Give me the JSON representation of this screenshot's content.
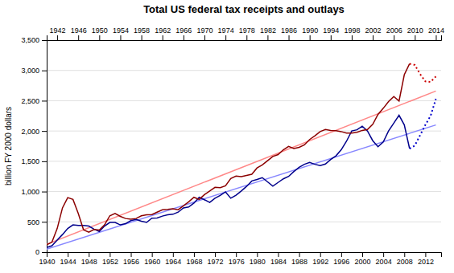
{
  "chart_data": {
    "type": "line",
    "title": "Total US federal tax receipts and outlays",
    "ylabel": "billion FY 2000 dollars",
    "xlim": [
      1940,
      2015
    ],
    "x2lim": [
      1940,
      2015
    ],
    "ylim": [
      0,
      3500
    ],
    "yticks": [
      0,
      500,
      {
        "value": 1000,
        "label": "1,000"
      },
      {
        "value": 1500,
        "label": "1,500"
      },
      {
        "value": 2000,
        "label": "2,000"
      },
      {
        "value": 2500,
        "label": "2,500"
      },
      {
        "value": 3000,
        "label": "3,000"
      },
      {
        "value": 3500,
        "label": "3,500"
      }
    ],
    "xticks": [
      1940,
      1944,
      1948,
      1952,
      1956,
      1960,
      1964,
      1968,
      1972,
      1976,
      1980,
      1984,
      1988,
      1992,
      1996,
      2000,
      2004,
      2008,
      2012
    ],
    "x2ticks": [
      1942,
      1946,
      1950,
      1954,
      1958,
      1962,
      1966,
      1970,
      1974,
      1978,
      1982,
      1986,
      1990,
      1994,
      1998,
      2002,
      2006,
      2010,
      2014
    ],
    "grid": true,
    "series": [
      {
        "color": "#8888FF",
        "line_style": "solid",
        "x": [
          1940,
          2014
        ],
        "values": [
          50,
          2100
        ]
      },
      {
        "color": "#FF8888",
        "line_style": "solid",
        "x": [
          1940,
          2014
        ],
        "values": [
          130,
          2660
        ]
      },
      {
        "color": "#00008B",
        "line_style": "solid",
        "x": [
          1940,
          1941,
          1942,
          1943,
          1944,
          1945,
          1946,
          1947,
          1948,
          1949,
          1950,
          1951,
          1952,
          1953,
          1954,
          1955,
          1956,
          1957,
          1958,
          1959,
          1960,
          1961,
          1962,
          1963,
          1964,
          1965,
          1966,
          1967,
          1968,
          1969,
          1970,
          1971,
          1972,
          1973,
          1974,
          1975,
          1976,
          1977,
          1978,
          1979,
          1980,
          1981,
          1982,
          1983,
          1984,
          1985,
          1986,
          1987,
          1988,
          1989,
          1990,
          1991,
          1992,
          1993,
          1994,
          1995,
          1996,
          1997,
          1998,
          1999,
          2000,
          2001,
          2002,
          2003,
          2004,
          2005,
          2006,
          2007,
          2008,
          2009
        ],
        "values": [
          75,
          105,
          200,
          290,
          390,
          450,
          440,
          440,
          430,
          380,
          340,
          430,
          490,
          490,
          450,
          470,
          520,
          540,
          510,
          490,
          560,
          565,
          595,
          615,
          625,
          660,
          730,
          745,
          810,
          905,
          865,
          820,
          890,
          935,
          995,
          890,
          940,
          1010,
          1085,
          1175,
          1200,
          1230,
          1160,
          1090,
          1150,
          1210,
          1250,
          1330,
          1400,
          1450,
          1480,
          1450,
          1430,
          1455,
          1530,
          1590,
          1690,
          1830,
          2000,
          2020,
          2080,
          2000,
          1840,
          1740,
          1820,
          2000,
          2130,
          2260,
          2100,
          1710
        ]
      },
      {
        "color": "#8B0000",
        "line_style": "solid",
        "x": [
          1940,
          1941,
          1942,
          1943,
          1944,
          1945,
          1946,
          1947,
          1948,
          1949,
          1950,
          1951,
          1952,
          1953,
          1954,
          1955,
          1956,
          1957,
          1958,
          1959,
          1960,
          1961,
          1962,
          1963,
          1964,
          1965,
          1966,
          1967,
          1968,
          1969,
          1970,
          1971,
          1972,
          1973,
          1974,
          1975,
          1976,
          1977,
          1978,
          1979,
          1980,
          1981,
          1982,
          1983,
          1984,
          1985,
          1986,
          1987,
          1988,
          1989,
          1990,
          1991,
          1992,
          1993,
          1994,
          1995,
          1996,
          1997,
          1998,
          1999,
          2000,
          2001,
          2002,
          2003,
          2004,
          2005,
          2006,
          2007,
          2008,
          2009
        ],
        "values": [
          120,
          165,
          390,
          730,
          900,
          870,
          640,
          370,
          330,
          375,
          365,
          450,
          600,
          640,
          590,
          555,
          545,
          555,
          600,
          615,
          620,
          660,
          700,
          705,
          715,
          700,
          765,
          830,
          905,
          870,
          950,
          1010,
          1070,
          1065,
          1095,
          1215,
          1255,
          1245,
          1265,
          1285,
          1390,
          1440,
          1510,
          1580,
          1610,
          1690,
          1745,
          1710,
          1730,
          1770,
          1860,
          1920,
          1990,
          2025,
          2010,
          2005,
          1990,
          1965,
          1965,
          1980,
          2010,
          2025,
          2110,
          2275,
          2375,
          2485,
          2570,
          2495,
          2930,
          3110
        ]
      },
      {
        "color": "#0000CC",
        "line_style": "dotted",
        "x": [
          2009,
          2010,
          2011,
          2012,
          2013,
          2014
        ],
        "values": [
          1710,
          1760,
          1930,
          2100,
          2250,
          2530
        ]
      },
      {
        "color": "#CC0000",
        "line_style": "dotted",
        "x": [
          2009,
          2010,
          2011,
          2012,
          2013,
          2014
        ],
        "values": [
          3110,
          3090,
          2940,
          2820,
          2810,
          2900
        ]
      }
    ]
  }
}
